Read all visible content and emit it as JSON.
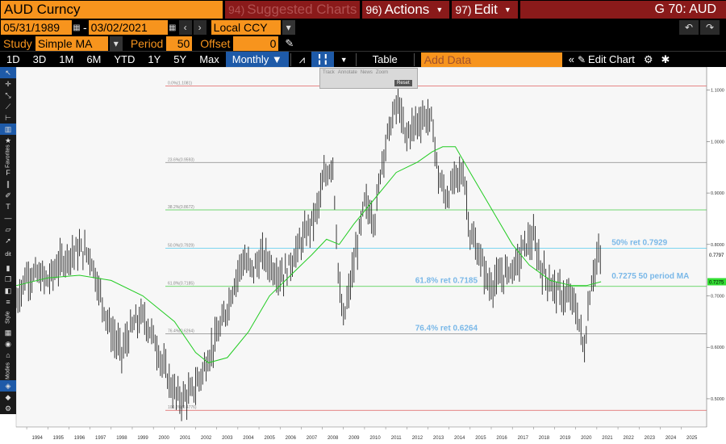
{
  "header": {
    "security": "AUD Curncy",
    "menus": [
      {
        "num": "94)",
        "label": "Suggested Charts",
        "dim": true
      },
      {
        "num": "96)",
        "label": "Actions",
        "dim": false
      },
      {
        "num": "97)",
        "label": "Edit",
        "dim": false
      }
    ],
    "function_code": "G 70: AUD"
  },
  "range": {
    "start_date": "05/31/1989",
    "end_date": "03/02/2021",
    "currency": "Local CCY"
  },
  "study": {
    "label": "Study",
    "value": "Simple MA",
    "period_label": "Period",
    "period": "50",
    "offset_label": "Offset",
    "offset": "0"
  },
  "toolbar": {
    "periods": [
      "1D",
      "3D",
      "1M",
      "6M",
      "YTD",
      "1Y",
      "5Y",
      "Max"
    ],
    "frequency": "Monthly ▼",
    "table_label": "Table",
    "add_data_placeholder": "Add Data",
    "edit_chart_label": "Edit Chart"
  },
  "float_toolbar": {
    "items": [
      "Track",
      "Annotate",
      "News",
      "Zoom"
    ],
    "reset": "Reset"
  },
  "left_toolbar": {
    "favorites_label": "Favorites",
    "edit_label": "dit",
    "style_label": "Style",
    "modes_label": "Modes"
  },
  "chart_data": {
    "type": "line",
    "x_start": 1993.5,
    "x_end": 2026.2,
    "ylim": [
      0.445,
      1.145
    ],
    "x_ticks": [
      "1994",
      "1995",
      "1996",
      "1997",
      "1998",
      "1999",
      "2000",
      "2001",
      "2002",
      "2003",
      "2004",
      "2005",
      "2006",
      "2007",
      "2008",
      "2009",
      "2010",
      "2011",
      "2012",
      "2013",
      "2014",
      "2015",
      "2016",
      "2017",
      "2018",
      "2019",
      "2020",
      "2021",
      "2022",
      "2023",
      "2024",
      "2025"
    ],
    "y_ticks": [
      "1.1000",
      "1.0000",
      "0.9000",
      "0.8000",
      "0.7000",
      "0.6000",
      "0.5000"
    ],
    "y_tick_values": [
      1.1,
      1.0,
      0.9,
      0.8,
      0.7,
      0.6,
      0.5
    ],
    "last_price": {
      "label": "0.7797",
      "value": 0.7797
    },
    "ma_price": {
      "label": "0.7275",
      "value": 0.7275
    },
    "price_series": {
      "name": "AUD",
      "x": [
        1993.5,
        1994,
        1994.5,
        1995,
        1995.5,
        1996,
        1996.5,
        1997,
        1997.5,
        1998,
        1998.5,
        1999,
        1999.5,
        2000,
        2000.5,
        2001,
        2001.3,
        2001.8,
        2002.3,
        2002.8,
        2003.3,
        2003.8,
        2004.2,
        2004.7,
        2005.2,
        2005.7,
        2006.2,
        2006.7,
        2007.2,
        2007.7,
        2008.1,
        2008.5,
        2008.8,
        2009.0,
        2009.5,
        2010.0,
        2010.5,
        2010.8,
        2011.2,
        2011.6,
        2011.9,
        2012.3,
        2012.8,
        2013.2,
        2013.5,
        2013.9,
        2014.3,
        2014.7,
        2015.0,
        2015.5,
        2015.9,
        2016.3,
        2016.8,
        2017.2,
        2017.6,
        2018.0,
        2018.4,
        2018.9,
        2019.4,
        2019.9,
        2020.2,
        2020.4,
        2020.7,
        2021.0,
        2021.2
      ],
      "y": [
        0.69,
        0.74,
        0.74,
        0.73,
        0.76,
        0.78,
        0.79,
        0.78,
        0.7,
        0.63,
        0.59,
        0.64,
        0.66,
        0.62,
        0.56,
        0.51,
        0.5,
        0.51,
        0.55,
        0.6,
        0.65,
        0.72,
        0.77,
        0.75,
        0.78,
        0.75,
        0.74,
        0.78,
        0.82,
        0.86,
        0.93,
        0.96,
        0.71,
        0.65,
        0.76,
        0.88,
        0.85,
        0.96,
        1.03,
        1.08,
        1.01,
        1.03,
        1.05,
        1.04,
        0.93,
        0.89,
        0.93,
        0.94,
        0.82,
        0.77,
        0.72,
        0.73,
        0.75,
        0.76,
        0.8,
        0.81,
        0.75,
        0.72,
        0.7,
        0.69,
        0.64,
        0.59,
        0.72,
        0.77,
        0.7797
      ]
    },
    "ma_series": {
      "name": "50 period MA",
      "x": [
        1993.5,
        1995,
        1996.5,
        1998,
        1999.5,
        2001,
        2002,
        2002.6,
        2003.5,
        2004.5,
        2005.5,
        2006.5,
        2007.5,
        2008.2,
        2008.8,
        2009.5,
        2010.5,
        2011.5,
        2012.5,
        2013.2,
        2013.7,
        2014.3,
        2015.0,
        2016.0,
        2017.0,
        2017.8,
        2018.8,
        2019.8,
        2020.5,
        2021.2
      ],
      "y": [
        0.72,
        0.735,
        0.74,
        0.73,
        0.7,
        0.65,
        0.59,
        0.57,
        0.58,
        0.63,
        0.7,
        0.74,
        0.78,
        0.81,
        0.8,
        0.84,
        0.89,
        0.94,
        0.96,
        0.98,
        0.99,
        0.99,
        0.94,
        0.87,
        0.8,
        0.76,
        0.73,
        0.72,
        0.72,
        0.7275
      ]
    },
    "fib_levels": [
      {
        "label": "0.0%(1.1081)",
        "value": 1.1081,
        "color": "#e06060"
      },
      {
        "label": "23.6%(0.9593)",
        "value": 0.9593,
        "color": "#999999"
      },
      {
        "label": "38.2%(0.8672)",
        "value": 0.8672,
        "color": "#44cc44"
      },
      {
        "label": "50.0%(0.7929)",
        "value": 0.7929,
        "color": "#55ccee"
      },
      {
        "label": "61.8%(0.7185)",
        "value": 0.7185,
        "color": "#44cc44"
      },
      {
        "label": "76.4%(0.6264)",
        "value": 0.6264,
        "color": "#999999"
      },
      {
        "label": "100.0%(0.4776)",
        "value": 0.4776,
        "color": "#e06060"
      }
    ],
    "annotations": [
      {
        "text": "50% ret 0.7929",
        "x": 2021.7,
        "y": 0.7929
      },
      {
        "text": "0.7275 50 period MA",
        "x": 2021.7,
        "y": 0.7275
      },
      {
        "text": "61.8% ret 0.7185",
        "x": 2012.4,
        "y": 0.7185
      },
      {
        "text": "76.4% ret 0.6264",
        "x": 2012.4,
        "y": 0.6264
      }
    ]
  }
}
